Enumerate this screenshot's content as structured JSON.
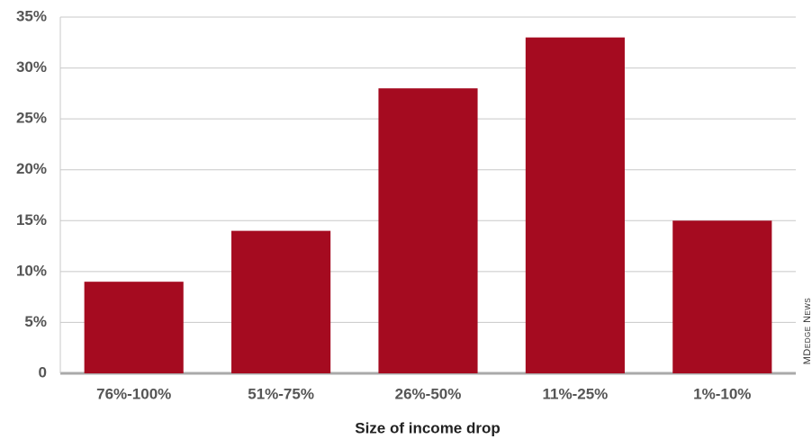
{
  "chart_data": {
    "type": "bar",
    "categories": [
      "76%-100%",
      "51%-75%",
      "26%-50%",
      "11%-25%",
      "1%-10%"
    ],
    "values": [
      9,
      14,
      28,
      33,
      15
    ],
    "color": "#a50b20",
    "ylim": [
      0,
      35
    ],
    "yticks": [
      0,
      {
        "value": 5,
        "label": "5%"
      },
      {
        "value": 10,
        "label": "10%"
      },
      {
        "value": 15,
        "label": "15%"
      },
      {
        "value": 20,
        "label": "20%"
      },
      {
        "value": 25,
        "label": "25%"
      },
      {
        "value": 30,
        "label": "30%"
      },
      {
        "value": 35,
        "label": "35%"
      }
    ],
    "grid": true,
    "x_label": "Size of income drop",
    "source": "MDedge News"
  }
}
